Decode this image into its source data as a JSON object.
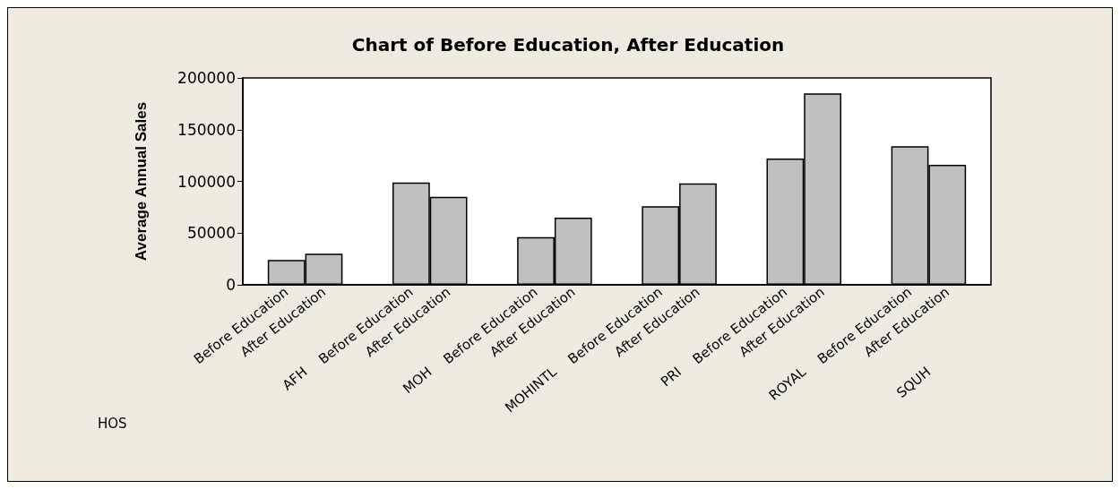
{
  "chart_data": {
    "type": "bar",
    "title": "Chart of Before Education, After Education",
    "xlabel": "HOS",
    "ylabel": "Average Annual Sales",
    "categories": [
      "AFH",
      "MOH",
      "MOHINTL",
      "PRI",
      "ROYAL",
      "SQUH"
    ],
    "series": [
      {
        "name": "Before Education",
        "color": "#c0c0c0",
        "values": [
          24000,
          99000,
          46000,
          76000,
          122000,
          134000
        ]
      },
      {
        "name": "After Education",
        "color": "#c0c0c0",
        "values": [
          30000,
          85000,
          65000,
          98000,
          185000,
          116000
        ]
      }
    ],
    "ylim": [
      0,
      200000
    ],
    "yticks": [
      0,
      50000,
      100000,
      150000,
      200000
    ],
    "grid": false,
    "legend": false
  }
}
